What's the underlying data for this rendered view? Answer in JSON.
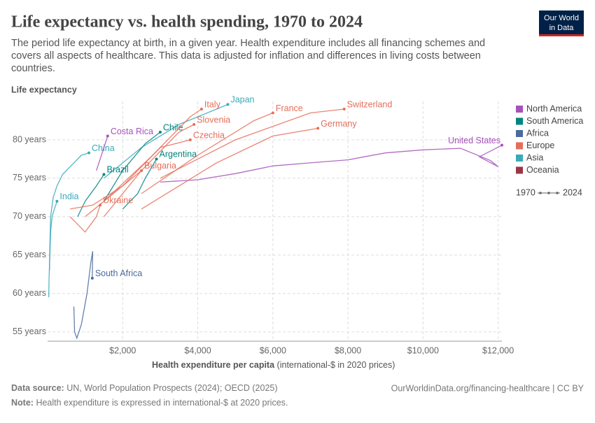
{
  "header": {
    "title": "Life expectancy vs. health spending, 1970 to 2024",
    "subtitle": [
      "The period life expectancy at birth, in a given year. Health expenditure includes all financing schemes and",
      "covers all aspects of healthcare. This data is adjusted for inflation and differences in living costs between",
      "countries."
    ],
    "logo": [
      "Our World",
      "in Data"
    ]
  },
  "chart_data": {
    "type": "line",
    "y_label": "Life expectancy",
    "x_label": "Health expenditure per capita",
    "x_label_units": "(international-$ in 2020 prices)",
    "xlim": [
      0,
      12100
    ],
    "ylim": [
      53.8,
      85
    ],
    "xticks": [
      {
        "value": 2000,
        "label": "$2,000"
      },
      {
        "value": 4000,
        "label": "$4,000"
      },
      {
        "value": 6000,
        "label": "$6,000"
      },
      {
        "value": 8000,
        "label": "$8,000"
      },
      {
        "value": 10000,
        "label": "$10,000"
      },
      {
        "value": 12000,
        "label": "$12,000"
      }
    ],
    "yticks": [
      {
        "value": 55,
        "label": "55 years"
      },
      {
        "value": 60,
        "label": "60 years"
      },
      {
        "value": 65,
        "label": "65 years"
      },
      {
        "value": 70,
        "label": "70 years"
      },
      {
        "value": 75,
        "label": "75 years"
      },
      {
        "value": 80,
        "label": "80 years"
      }
    ],
    "grid": true,
    "legend": [
      {
        "name": "North America",
        "color": "#a652ba"
      },
      {
        "name": "South America",
        "color": "#00847e"
      },
      {
        "name": "Africa",
        "color": "#4c6a9c"
      },
      {
        "name": "Europe",
        "color": "#e56e5a"
      },
      {
        "name": "Asia",
        "color": "#38aaba"
      },
      {
        "name": "Oceania",
        "color": "#9a3547"
      }
    ],
    "time_legend": [
      "1970",
      "2024"
    ],
    "series": [
      {
        "name": "United States",
        "color": "#a652ba",
        "x": [
          3000,
          4000,
          5000,
          6000,
          7000,
          8000,
          9000,
          10000,
          11000,
          11800,
          12000,
          11500,
          12100
        ],
        "values": [
          74.5,
          74.8,
          75.6,
          76.6,
          77.0,
          77.4,
          78.3,
          78.7,
          78.9,
          77.3,
          76.5,
          77.8,
          79.3
        ]
      },
      {
        "name": "China",
        "color": "#38aaba",
        "x": [
          50,
          60,
          80,
          150,
          250,
          400,
          600,
          900,
          1100
        ],
        "values": [
          63,
          66,
          70,
          72.5,
          74,
          75.5,
          76.5,
          78,
          78.3
        ]
      },
      {
        "name": "India",
        "color": "#38aaba",
        "x": [
          30,
          40,
          60,
          80,
          120,
          180,
          250
        ],
        "values": [
          59.5,
          62,
          65,
          68,
          70,
          71,
          72
        ]
      },
      {
        "name": "Japan",
        "color": "#38aaba",
        "x": [
          1500,
          2500,
          3500,
          4500,
          4800
        ],
        "values": [
          75,
          79,
          82,
          84,
          84.6
        ]
      },
      {
        "name": "South Africa",
        "color": "#4c6a9c",
        "x": [
          700,
          720,
          780,
          900,
          1050,
          1150,
          1200,
          1190
        ],
        "values": [
          58.3,
          55,
          54.2,
          56,
          60,
          64,
          65.5,
          62
        ]
      },
      {
        "name": "Brazil",
        "color": "#00847e",
        "x": [
          800,
          1000,
          1300,
          1500
        ],
        "values": [
          70,
          72,
          74,
          75.5
        ]
      },
      {
        "name": "Argentina",
        "color": "#00847e",
        "x": [
          2000,
          2400,
          2600,
          2900
        ],
        "values": [
          71,
          73,
          75,
          77.5
        ]
      },
      {
        "name": "Chile",
        "color": "#00847e",
        "x": [
          1500,
          2000,
          2600,
          3000
        ],
        "values": [
          72,
          76,
          79.5,
          81
        ]
      },
      {
        "name": "Costa Rica",
        "color": "#a652ba",
        "x": [
          1300,
          1500,
          1600
        ],
        "values": [
          76,
          79,
          80.5
        ]
      },
      {
        "name": "Italy",
        "color": "#e56e5a",
        "x": [
          1500,
          2800,
          3800,
          4100
        ],
        "values": [
          72,
          78,
          83,
          84
        ]
      },
      {
        "name": "France",
        "color": "#e56e5a",
        "x": [
          2500,
          4000,
          5500,
          6000
        ],
        "values": [
          73,
          78,
          82.5,
          83.5
        ]
      },
      {
        "name": "Switzerland",
        "color": "#e56e5a",
        "x": [
          3000,
          5000,
          7000,
          7900
        ],
        "values": [
          75,
          80,
          83.5,
          84
        ]
      },
      {
        "name": "Germany",
        "color": "#e56e5a",
        "x": [
          2500,
          4500,
          6000,
          7200
        ],
        "values": [
          71,
          77,
          80.5,
          81.5
        ]
      },
      {
        "name": "Slovenia",
        "color": "#e56e5a",
        "x": [
          1500,
          2500,
          3500,
          3900
        ],
        "values": [
          70,
          76,
          81,
          82
        ]
      },
      {
        "name": "Czechia",
        "color": "#e56e5a",
        "x": [
          1000,
          2000,
          3000,
          3800
        ],
        "values": [
          70,
          74,
          79,
          80
        ]
      },
      {
        "name": "Bulgaria",
        "color": "#e56e5a",
        "x": [
          600,
          1200,
          2000,
          2500
        ],
        "values": [
          71,
          71.5,
          74,
          76
        ]
      },
      {
        "name": "Ukraine",
        "color": "#e56e5a",
        "x": [
          600,
          1000,
          1300,
          1400
        ],
        "values": [
          70,
          68,
          70,
          71.5
        ]
      }
    ]
  },
  "footer": {
    "source_label": "Data source:",
    "source": "UN, World Population Prospects (2024); OECD (2025)",
    "link": "OurWorldinData.org/financing-healthcare | CC BY",
    "note_label": "Note:",
    "note": "Health expenditure is expressed in international-$ at 2020 prices."
  }
}
